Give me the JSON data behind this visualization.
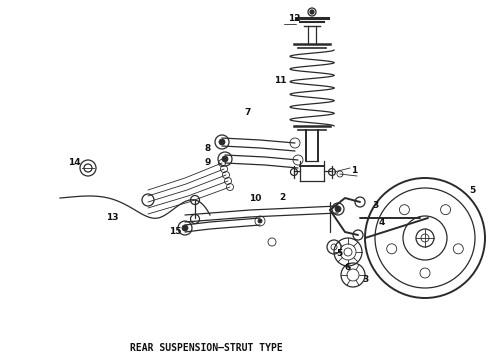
{
  "title": "REAR SUSPENSION–STRUT TYPE",
  "background_color": "#ffffff",
  "line_color": "#2a2a2a",
  "label_color": "#111111",
  "title_fontsize": 7.0,
  "label_fontsize": 6.5
}
